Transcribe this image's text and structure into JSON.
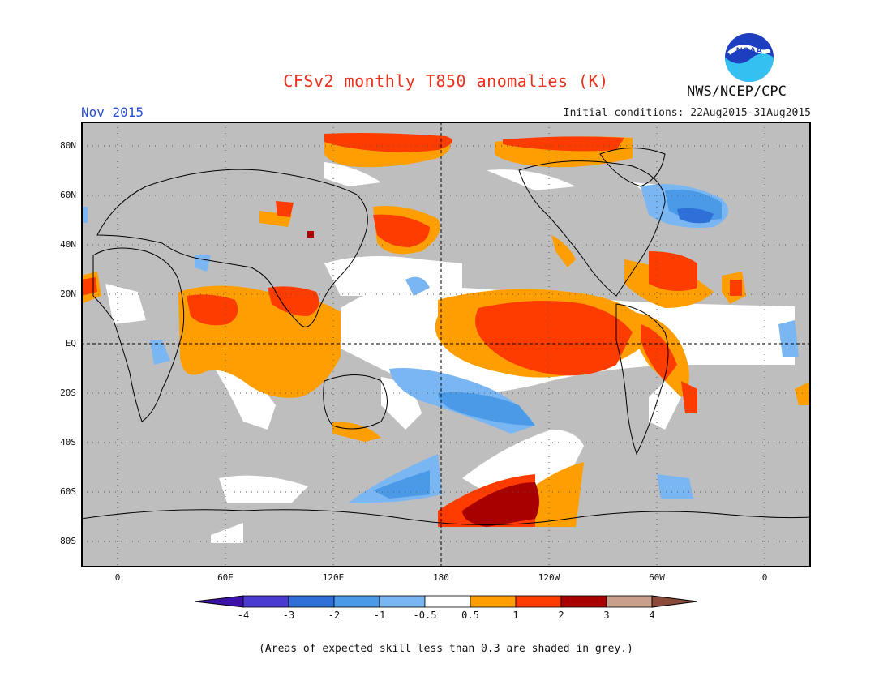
{
  "header": {
    "title": "CFSv2 monthly T850 anomalies (K)",
    "month": "Nov 2015",
    "initial_conditions": "Initial conditions: 22Aug2015-31Aug2015",
    "agency": "NWS/NCEP/CPC",
    "logo_text": "NOAA"
  },
  "axes": {
    "y_labels": [
      "80N",
      "60N",
      "40N",
      "20N",
      "EQ",
      "20S",
      "40S",
      "60S",
      "80S"
    ],
    "x_labels": [
      "0",
      "60E",
      "120E",
      "180",
      "120W",
      "60W",
      "0"
    ]
  },
  "legend": {
    "ticks": [
      "-4",
      "-3",
      "-2",
      "-1",
      "-0.5",
      "0.5",
      "1",
      "2",
      "3",
      "4"
    ],
    "colors": [
      "#3c12a8",
      "#4a3ad0",
      "#2e6fd8",
      "#4a9ae8",
      "#7ab6f2",
      "#ffffff",
      "#ff9e00",
      "#ff3c00",
      "#a80000",
      "#c8a08c",
      "#8a4a3a"
    ]
  },
  "footer": {
    "note": "(Areas of expected skill less than 0.3 are shaded in grey.)"
  }
}
